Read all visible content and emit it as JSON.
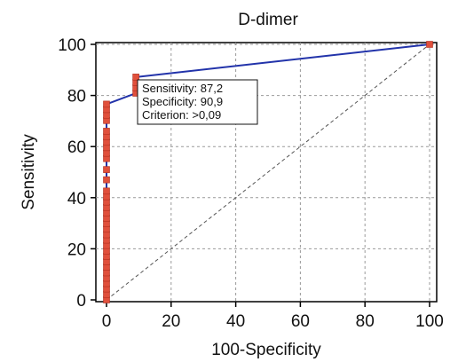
{
  "chart_data": {
    "type": "line",
    "title": "D-dimer",
    "xlabel": "100-Specificity",
    "ylabel": "Sensitivity",
    "xlim": [
      0,
      100
    ],
    "ylim": [
      0,
      100
    ],
    "x_ticks": [
      0,
      20,
      40,
      60,
      80,
      100
    ],
    "y_ticks": [
      0,
      20,
      40,
      60,
      80,
      100
    ],
    "grid": true,
    "series": [
      {
        "color": "#2233aa",
        "marker_color": "#e0503c",
        "points": [
          [
            0,
            0
          ],
          [
            0,
            2.1
          ],
          [
            0,
            4.3
          ],
          [
            0,
            6.4
          ],
          [
            0,
            8.5
          ],
          [
            0,
            10.6
          ],
          [
            0,
            12.8
          ],
          [
            0,
            14.9
          ],
          [
            0,
            17.0
          ],
          [
            0,
            19.1
          ],
          [
            0,
            21.3
          ],
          [
            0,
            23.4
          ],
          [
            0,
            25.5
          ],
          [
            0,
            27.7
          ],
          [
            0,
            29.8
          ],
          [
            0,
            31.9
          ],
          [
            0,
            34.0
          ],
          [
            0,
            36.2
          ],
          [
            0,
            38.3
          ],
          [
            0,
            40.4
          ],
          [
            0,
            42.6
          ],
          [
            0,
            47.0
          ],
          [
            0,
            51.0
          ],
          [
            0,
            55.3
          ],
          [
            0,
            57.4
          ],
          [
            0,
            59.6
          ],
          [
            0,
            61.7
          ],
          [
            0,
            63.8
          ],
          [
            0,
            66.0
          ],
          [
            0,
            70.2
          ],
          [
            0,
            72.3
          ],
          [
            0,
            74.5
          ],
          [
            0,
            76.6
          ],
          [
            9.1,
            80.9
          ],
          [
            9.1,
            83.0
          ],
          [
            9.1,
            85.1
          ],
          [
            9.1,
            87.2
          ],
          [
            100,
            100
          ]
        ]
      }
    ],
    "reference_line": {
      "color": "#555555",
      "from": [
        0,
        0
      ],
      "to": [
        100,
        100
      ]
    },
    "annotation": {
      "lines": [
        "Sensitivity: 87,2",
        "Specificity: 90,9",
        "Criterion: >0,09"
      ],
      "point": [
        9.1,
        87.2
      ]
    }
  }
}
